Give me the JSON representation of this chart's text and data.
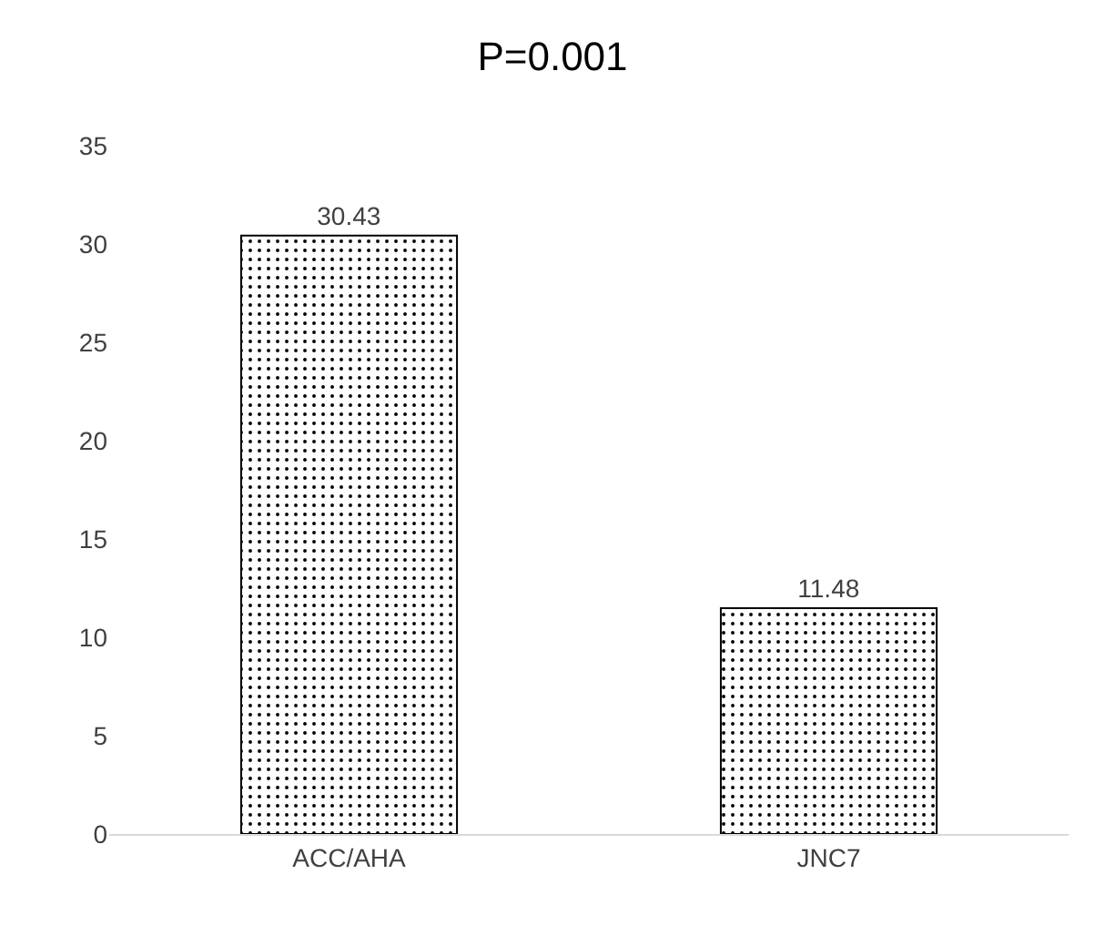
{
  "chart_data": {
    "type": "bar",
    "title": "P=0.001",
    "categories": [
      "ACC/AHA",
      "JNC7"
    ],
    "values": [
      30.43,
      11.48
    ],
    "color": "#000000",
    "ylim": [
      0,
      35
    ],
    "yticks": [
      0,
      5,
      10,
      15,
      20,
      25,
      30,
      35
    ],
    "grid": false,
    "data_labels": true
  }
}
